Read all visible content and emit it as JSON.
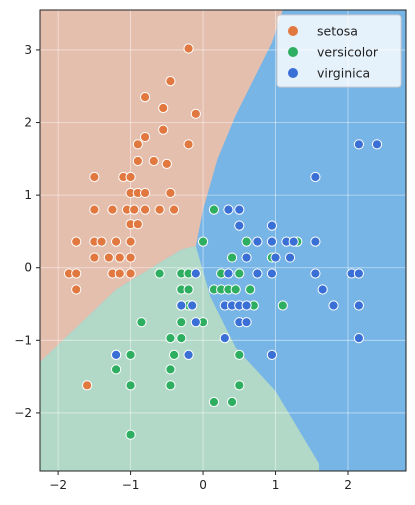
{
  "chart_data": {
    "type": "scatter",
    "title": "",
    "xlabel": "",
    "ylabel": "",
    "xlim": [
      -2.25,
      2.8
    ],
    "ylim": [
      -2.8,
      3.55
    ],
    "xticks": [
      -2,
      -1,
      0,
      1,
      2
    ],
    "yticks": [
      -2,
      -1,
      0,
      1,
      2,
      3
    ],
    "grid": true,
    "legend_position": "top-right",
    "regions": {
      "setosa": "#e4bfae",
      "versicolor": "#b2d9c8",
      "virginica": "#77b5e6"
    },
    "series": [
      {
        "name": "setosa",
        "color": "#e07840",
        "points": [
          [
            -0.2,
            3.02
          ],
          [
            -0.45,
            2.57
          ],
          [
            -0.8,
            2.35
          ],
          [
            -0.55,
            2.2
          ],
          [
            -0.1,
            2.12
          ],
          [
            -0.55,
            1.9
          ],
          [
            -0.8,
            1.8
          ],
          [
            -0.2,
            1.7
          ],
          [
            -0.9,
            1.7
          ],
          [
            -0.9,
            1.47
          ],
          [
            -0.68,
            1.47
          ],
          [
            -0.5,
            1.43
          ],
          [
            -1.5,
            1.25
          ],
          [
            -1.1,
            1.25
          ],
          [
            -1.0,
            1.25
          ],
          [
            -1.0,
            1.03
          ],
          [
            -0.9,
            1.03
          ],
          [
            -0.8,
            1.03
          ],
          [
            -0.45,
            1.03
          ],
          [
            -1.5,
            0.8
          ],
          [
            -1.25,
            0.8
          ],
          [
            -1.05,
            0.8
          ],
          [
            -0.95,
            0.8
          ],
          [
            -0.8,
            0.8
          ],
          [
            -0.6,
            0.8
          ],
          [
            -0.4,
            0.8
          ],
          [
            -1.0,
            0.6
          ],
          [
            -0.9,
            0.6
          ],
          [
            -1.75,
            0.36
          ],
          [
            -1.5,
            0.36
          ],
          [
            -1.4,
            0.36
          ],
          [
            -1.2,
            0.36
          ],
          [
            -1.0,
            0.36
          ],
          [
            -1.5,
            0.14
          ],
          [
            -1.3,
            0.14
          ],
          [
            -1.15,
            0.14
          ],
          [
            -1.0,
            0.14
          ],
          [
            -1.85,
            -0.08
          ],
          [
            -1.75,
            -0.08
          ],
          [
            -1.25,
            -0.08
          ],
          [
            -1.15,
            -0.08
          ],
          [
            -1.0,
            -0.08
          ],
          [
            -1.75,
            -0.3
          ],
          [
            -1.6,
            -1.62
          ]
        ]
      },
      {
        "name": "versicolor",
        "color": "#2eae60",
        "points": [
          [
            0.15,
            0.8
          ],
          [
            0.0,
            0.36
          ],
          [
            0.6,
            0.36
          ],
          [
            1.3,
            0.36
          ],
          [
            0.4,
            0.14
          ],
          [
            0.95,
            0.14
          ],
          [
            -0.6,
            -0.08
          ],
          [
            -0.3,
            -0.08
          ],
          [
            -0.2,
            -0.08
          ],
          [
            0.25,
            -0.08
          ],
          [
            0.5,
            -0.08
          ],
          [
            -0.3,
            -0.3
          ],
          [
            -0.2,
            -0.3
          ],
          [
            0.15,
            -0.3
          ],
          [
            0.25,
            -0.3
          ],
          [
            0.35,
            -0.3
          ],
          [
            0.45,
            -0.3
          ],
          [
            0.65,
            -0.3
          ],
          [
            -0.3,
            -0.52
          ],
          [
            -0.2,
            -0.52
          ],
          [
            0.7,
            -0.52
          ],
          [
            1.1,
            -0.52
          ],
          [
            -0.85,
            -0.75
          ],
          [
            -0.3,
            -0.75
          ],
          [
            0.0,
            -0.75
          ],
          [
            -0.45,
            -0.97
          ],
          [
            -0.3,
            -0.97
          ],
          [
            -1.2,
            -1.2
          ],
          [
            -1.0,
            -1.2
          ],
          [
            -0.4,
            -1.2
          ],
          [
            0.5,
            -1.2
          ],
          [
            -1.2,
            -1.4
          ],
          [
            -0.45,
            -1.4
          ],
          [
            -1.0,
            -1.62
          ],
          [
            -0.45,
            -1.62
          ],
          [
            0.5,
            -1.62
          ],
          [
            0.15,
            -1.85
          ],
          [
            0.4,
            -1.85
          ],
          [
            -1.0,
            -2.3
          ]
        ]
      },
      {
        "name": "virginica",
        "color": "#3a6fd6",
        "points": [
          [
            2.15,
            1.7
          ],
          [
            2.4,
            1.7
          ],
          [
            1.55,
            1.25
          ],
          [
            0.35,
            0.8
          ],
          [
            0.5,
            0.8
          ],
          [
            0.5,
            0.58
          ],
          [
            0.95,
            0.58
          ],
          [
            0.75,
            0.36
          ],
          [
            0.95,
            0.36
          ],
          [
            1.15,
            0.36
          ],
          [
            1.25,
            0.36
          ],
          [
            1.55,
            0.36
          ],
          [
            0.6,
            0.14
          ],
          [
            1.0,
            0.14
          ],
          [
            1.2,
            0.14
          ],
          [
            -0.1,
            -0.08
          ],
          [
            0.35,
            -0.08
          ],
          [
            0.75,
            -0.08
          ],
          [
            0.95,
            -0.08
          ],
          [
            1.55,
            -0.08
          ],
          [
            2.05,
            -0.08
          ],
          [
            2.15,
            -0.08
          ],
          [
            1.65,
            -0.3
          ],
          [
            -0.15,
            -0.52
          ],
          [
            0.3,
            -0.52
          ],
          [
            0.4,
            -0.52
          ],
          [
            0.5,
            -0.52
          ],
          [
            0.6,
            -0.52
          ],
          [
            1.8,
            -0.52
          ],
          [
            2.15,
            -0.52
          ],
          [
            -0.3,
            -0.52
          ],
          [
            0.5,
            -0.75
          ],
          [
            0.6,
            -0.75
          ],
          [
            -0.1,
            -0.75
          ],
          [
            0.3,
            -0.97
          ],
          [
            2.15,
            -0.97
          ],
          [
            -1.2,
            -1.2
          ],
          [
            -0.2,
            -1.2
          ],
          [
            0.95,
            -1.2
          ]
        ]
      }
    ]
  }
}
